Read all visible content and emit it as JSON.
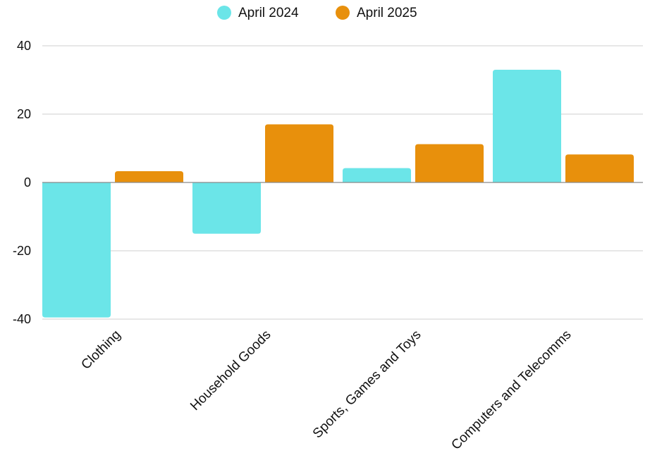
{
  "chart_data": {
    "type": "bar",
    "title": "",
    "xlabel": "",
    "ylabel": "",
    "categories": [
      "Clothing",
      "Household Goods",
      "Sports, Games and Toys",
      "Computers and Telecomms"
    ],
    "series": [
      {
        "name": "April 2024",
        "color": "#6BE5E8",
        "values": [
          -39.5,
          -15,
          4.2,
          33
        ]
      },
      {
        "name": "April 2025",
        "color": "#E8900C",
        "values": [
          3.3,
          17,
          11.2,
          8.2
        ]
      }
    ],
    "ylim": [
      -40,
      40
    ],
    "yticks": [
      -40,
      -20,
      0,
      20,
      40
    ],
    "grid": true,
    "legend_position": "top-center"
  }
}
